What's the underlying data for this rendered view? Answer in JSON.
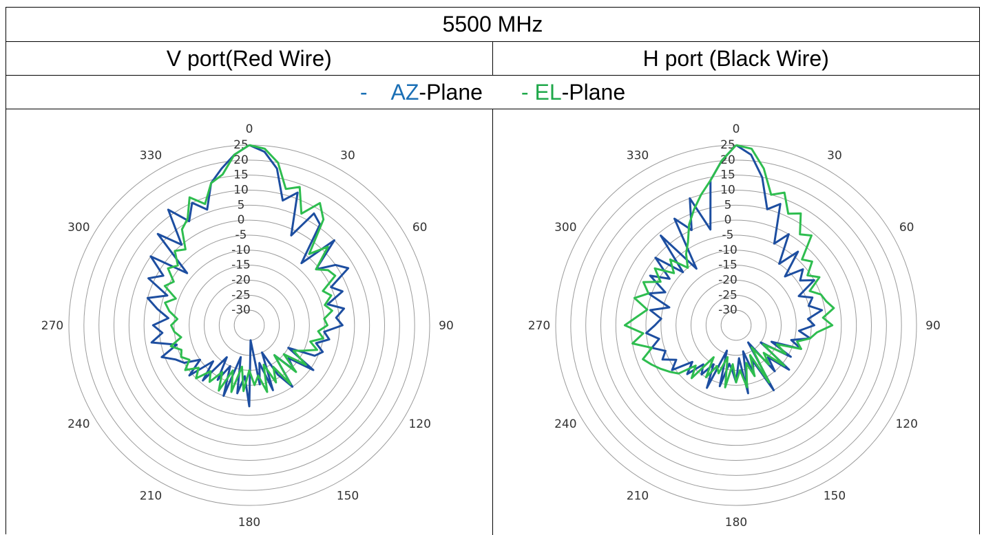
{
  "table": {
    "title": "5500 MHz",
    "ports": [
      "V port(Red Wire)",
      "H port (Black Wire)"
    ]
  },
  "legend": {
    "az": {
      "dash": "-",
      "prefix": "AZ",
      "suffix": "-Plane",
      "color": "#1a6fb5"
    },
    "el": {
      "dash": "- ",
      "prefix": "EL",
      "suffix": "-Plane",
      "color": "#1fa84a"
    }
  },
  "chart_data": [
    {
      "type": "polar-line",
      "title": "V port(Red Wire)",
      "angle_ticks": [
        "0",
        "30",
        "60",
        "90",
        "120",
        "150",
        "180",
        "210",
        "240",
        "270",
        "300",
        "330"
      ],
      "radial_ticks": [
        "25",
        "20",
        "15",
        "10",
        "5",
        "0",
        "-5",
        "-10",
        "-15",
        "-20",
        "-25",
        "-30"
      ],
      "rlim": [
        -35,
        25
      ],
      "grid": true,
      "series": [
        {
          "name": "AZ-Plane",
          "color": "#1d4ea0",
          "angles": [
            0,
            5,
            10,
            15,
            20,
            25,
            30,
            35,
            40,
            45,
            50,
            55,
            60,
            65,
            70,
            75,
            80,
            85,
            90,
            95,
            100,
            105,
            110,
            115,
            120,
            125,
            130,
            135,
            140,
            145,
            150,
            155,
            160,
            165,
            170,
            175,
            180,
            185,
            190,
            195,
            200,
            205,
            210,
            215,
            220,
            225,
            230,
            235,
            240,
            245,
            250,
            255,
            260,
            265,
            270,
            275,
            280,
            285,
            290,
            295,
            300,
            305,
            310,
            315,
            320,
            325,
            330,
            335,
            340,
            345,
            350,
            355
          ],
          "values": [
            25,
            23,
            18,
            8,
            12,
            -2,
            8,
            6,
            -8,
            5,
            -6,
            0,
            3,
            -5,
            -2,
            -8,
            -3,
            -6,
            -4,
            -10,
            -8,
            -12,
            -9,
            -11,
            -20,
            -9,
            -18,
            -14,
            -22,
            -10,
            -16,
            -25,
            -12,
            -22,
            -15,
            -30,
            -8,
            -18,
            -12,
            -24,
            -10,
            -20,
            -14,
            -22,
            -11,
            -18,
            -9,
            -15,
            -10,
            -8,
            -4,
            -10,
            -2,
            -6,
            -3,
            -8,
            -4,
            0,
            -6,
            2,
            -2,
            5,
            -8,
            8,
            0,
            12,
            5,
            10,
            6,
            14,
            18,
            22
          ]
        },
        {
          "name": "EL-Plane",
          "color": "#2ebd4f",
          "angles": [
            0,
            5,
            10,
            15,
            20,
            25,
            30,
            35,
            40,
            45,
            50,
            55,
            60,
            65,
            70,
            75,
            80,
            85,
            90,
            95,
            100,
            105,
            110,
            115,
            120,
            125,
            130,
            135,
            140,
            145,
            150,
            155,
            160,
            165,
            170,
            175,
            180,
            185,
            190,
            195,
            200,
            205,
            210,
            215,
            220,
            225,
            230,
            235,
            240,
            245,
            250,
            255,
            260,
            265,
            270,
            275,
            280,
            285,
            290,
            295,
            300,
            305,
            310,
            315,
            320,
            325,
            330,
            335,
            340,
            345,
            350,
            355
          ],
          "values": [
            25,
            24,
            20,
            12,
            14,
            6,
            12,
            8,
            -4,
            2,
            -6,
            -3,
            -2,
            -8,
            -6,
            -9,
            -7,
            -10,
            -9,
            -12,
            -10,
            -14,
            -11,
            -15,
            -18,
            -12,
            -20,
            -13,
            -22,
            -11,
            -19,
            -14,
            -21,
            -12,
            -18,
            -15,
            -20,
            -13,
            -21,
            -12,
            -19,
            -11,
            -17,
            -12,
            -15,
            -10,
            -13,
            -9,
            -12,
            -10,
            -11,
            -8,
            -12,
            -10,
            -9,
            -11,
            -8,
            -6,
            -9,
            -4,
            -6,
            -2,
            -4,
            0,
            -2,
            4,
            6,
            12,
            8,
            14,
            16,
            22
          ]
        }
      ]
    },
    {
      "type": "polar-line",
      "title": "H port (Black Wire)",
      "angle_ticks": [
        "0",
        "30",
        "60",
        "90",
        "120",
        "150",
        "180",
        "210",
        "240",
        "270",
        "300",
        "330"
      ],
      "radial_ticks": [
        "25",
        "20",
        "15",
        "10",
        "5",
        "0",
        "-5",
        "-10",
        "-15",
        "-20",
        "-25",
        "-30"
      ],
      "rlim": [
        -35,
        25
      ],
      "grid": true,
      "series": [
        {
          "name": "AZ-Plane",
          "color": "#1d4ea0",
          "angles": [
            0,
            5,
            10,
            15,
            20,
            25,
            30,
            35,
            40,
            45,
            50,
            55,
            60,
            65,
            70,
            75,
            80,
            85,
            90,
            95,
            100,
            105,
            110,
            115,
            120,
            125,
            130,
            135,
            140,
            145,
            150,
            155,
            160,
            165,
            170,
            175,
            180,
            185,
            190,
            195,
            200,
            205,
            210,
            215,
            220,
            225,
            230,
            235,
            240,
            245,
            250,
            255,
            260,
            265,
            270,
            275,
            280,
            285,
            290,
            295,
            300,
            305,
            310,
            315,
            320,
            325,
            330,
            335,
            340,
            345,
            350,
            355
          ],
          "values": [
            25,
            22,
            15,
            5,
            8,
            -5,
            0,
            -10,
            -3,
            -12,
            -6,
            -9,
            -5,
            -12,
            -8,
            -10,
            -6,
            -11,
            -9,
            -14,
            -10,
            -16,
            -12,
            -22,
            -14,
            -25,
            -12,
            -20,
            -15,
            -28,
            -10,
            -22,
            -18,
            -26,
            -12,
            -24,
            -16,
            -20,
            -22,
            -14,
            -26,
            -12,
            -20,
            -15,
            -18,
            -12,
            -16,
            -9,
            -12,
            -8,
            -10,
            -6,
            -9,
            -5,
            -8,
            -10,
            -6,
            -12,
            -4,
            -9,
            -2,
            -8,
            0,
            -10,
            4,
            -12,
            6,
            0,
            10,
            -2,
            14,
            20
          ],
          "_": null
        },
        {
          "name": "EL-Plane",
          "color": "#2ebd4f",
          "angles": [
            0,
            5,
            10,
            15,
            20,
            25,
            30,
            35,
            40,
            45,
            50,
            55,
            60,
            65,
            70,
            75,
            80,
            85,
            90,
            95,
            100,
            105,
            110,
            115,
            120,
            125,
            130,
            135,
            140,
            145,
            150,
            155,
            160,
            165,
            170,
            175,
            180,
            185,
            190,
            195,
            200,
            205,
            210,
            215,
            220,
            225,
            230,
            235,
            240,
            245,
            250,
            255,
            260,
            265,
            270,
            275,
            280,
            285,
            290,
            295,
            300,
            305,
            310,
            315,
            320,
            325,
            330,
            335,
            340,
            345,
            350,
            355
          ],
          "values": [
            25,
            24,
            18,
            10,
            12,
            6,
            8,
            2,
            4,
            -4,
            -2,
            -6,
            -3,
            -8,
            -5,
            -4,
            -2,
            -6,
            -3,
            -8,
            -10,
            -14,
            -12,
            -20,
            -16,
            -24,
            -14,
            -22,
            -18,
            -26,
            -13,
            -24,
            -17,
            -22,
            -14,
            -20,
            -16,
            -22,
            -14,
            -24,
            -18,
            -20,
            -15,
            -22,
            -12,
            -16,
            -10,
            -8,
            -6,
            -4,
            -2,
            -6,
            0,
            -4,
            2,
            -2,
            -5,
            0,
            -4,
            -1,
            -6,
            -2,
            -8,
            -4,
            -10,
            -6,
            -3,
            2,
            6,
            10,
            14,
            20
          ]
        }
      ]
    }
  ]
}
